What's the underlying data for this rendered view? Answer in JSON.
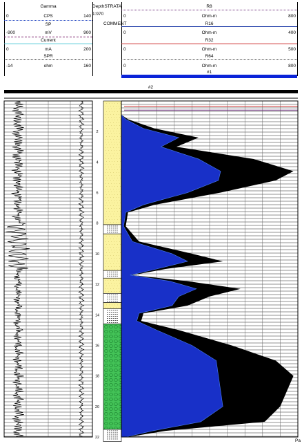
{
  "header": {
    "left": [
      {
        "name": "Gamma",
        "min": "0",
        "unit": "CPS",
        "max": "140",
        "color": "#1b3fbf",
        "style": "dotted"
      },
      {
        "name": "SP",
        "min": "-900",
        "unit": "mV",
        "max": "900",
        "color": "#7a1c6a",
        "style": "dashed"
      },
      {
        "name": "Current",
        "min": "0",
        "unit": "mA",
        "max": "200",
        "color": "#49c6d6",
        "style": "solid"
      },
      {
        "name": "SPR",
        "min": "-14",
        "unit": "ohm",
        "max": "160",
        "color": "#1b1b1b",
        "style": "dotted"
      }
    ],
    "depth_label": "Depth",
    "strata_label": "STRATA",
    "depth_ratio": "1:970",
    "comment_label": "COMMENT",
    "right": [
      {
        "name": "R8",
        "min": "0",
        "unit": "Ohm-m",
        "max": "800",
        "color": "#6b2a7a",
        "style": "dotted"
      },
      {
        "name": "R16",
        "min": "0",
        "unit": "Ohm-m",
        "max": "400",
        "color": "#1d3ba8",
        "style": "solid"
      },
      {
        "name": "R32",
        "min": "0",
        "unit": "Ohm-m",
        "max": "500",
        "color": "#cc2b2b",
        "style": "solid"
      },
      {
        "name": "R64",
        "min": "0",
        "unit": "Ohm-m",
        "max": "800",
        "color": "#333333",
        "style": "dotted"
      }
    ],
    "marker1": "#1",
    "marker2": "#2",
    "bar_color": "#0a23d8"
  },
  "depth_scale": {
    "start": 0,
    "end": 22,
    "labels": [
      "2",
      "4",
      "6",
      "8",
      "10",
      "12",
      "14",
      "16",
      "18",
      "20",
      "22"
    ]
  },
  "log_curves": {
    "deep_fill_color": "#000000",
    "shallow_fill_color": "#1830c8",
    "outline_color": "#4a7df0"
  },
  "strata": {
    "sand_color": "#fbf3a0",
    "gravel_color": "#43c257",
    "layers": [
      {
        "type": "sand",
        "from": 0,
        "to": 8.1
      },
      {
        "type": "clay",
        "from": 8.1,
        "to": 8.7
      },
      {
        "type": "sand",
        "from": 8.7,
        "to": 11.1
      },
      {
        "type": "clay",
        "from": 11.1,
        "to": 11.6
      },
      {
        "type": "sand",
        "from": 11.6,
        "to": 12.6
      },
      {
        "type": "clay",
        "from": 12.6,
        "to": 13.2
      },
      {
        "type": "sand",
        "from": 13.2,
        "to": 13.6
      },
      {
        "type": "clay",
        "from": 13.6,
        "to": 14.6
      },
      {
        "type": "gravel",
        "from": 14.6,
        "to": 21.5
      },
      {
        "type": "clay",
        "from": 21.5,
        "to": 22.3
      }
    ]
  },
  "footer": {
    "page_label": "Pa"
  }
}
